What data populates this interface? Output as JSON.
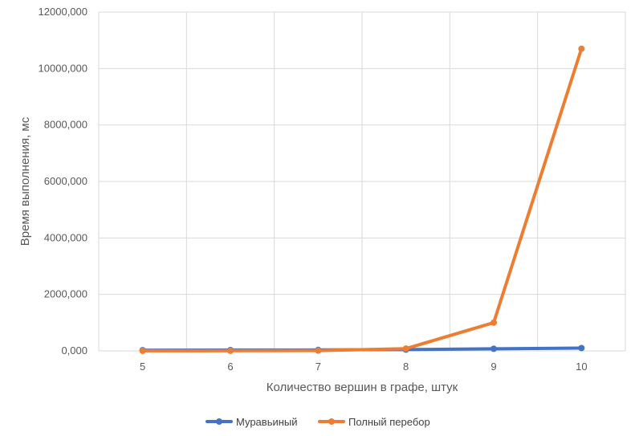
{
  "chart_data": {
    "type": "line",
    "x": [
      5,
      6,
      7,
      8,
      9,
      10
    ],
    "categories": [
      "5",
      "6",
      "7",
      "8",
      "9",
      "10"
    ],
    "series": [
      {
        "name": "Муравьиный",
        "color": "#4472C4",
        "values": [
          25,
          30,
          35,
          45,
          75,
          100
        ]
      },
      {
        "name": "Полный перебор",
        "color": "#ED7D31",
        "values": [
          3,
          5,
          10,
          80,
          1000,
          10700
        ]
      }
    ],
    "xlabel": "Количество вершин в графе, штук",
    "ylabel": "Время выполнения, мс",
    "ylim": [
      0,
      12000
    ],
    "yticks": [
      0,
      2000,
      4000,
      6000,
      8000,
      10000,
      12000
    ],
    "ytick_labels": [
      "0,000",
      "2000,000",
      "4000,000",
      "6000,000",
      "8000,000",
      "10000,000",
      "12000,000"
    ],
    "grid": true,
    "legend_position": "bottom"
  }
}
